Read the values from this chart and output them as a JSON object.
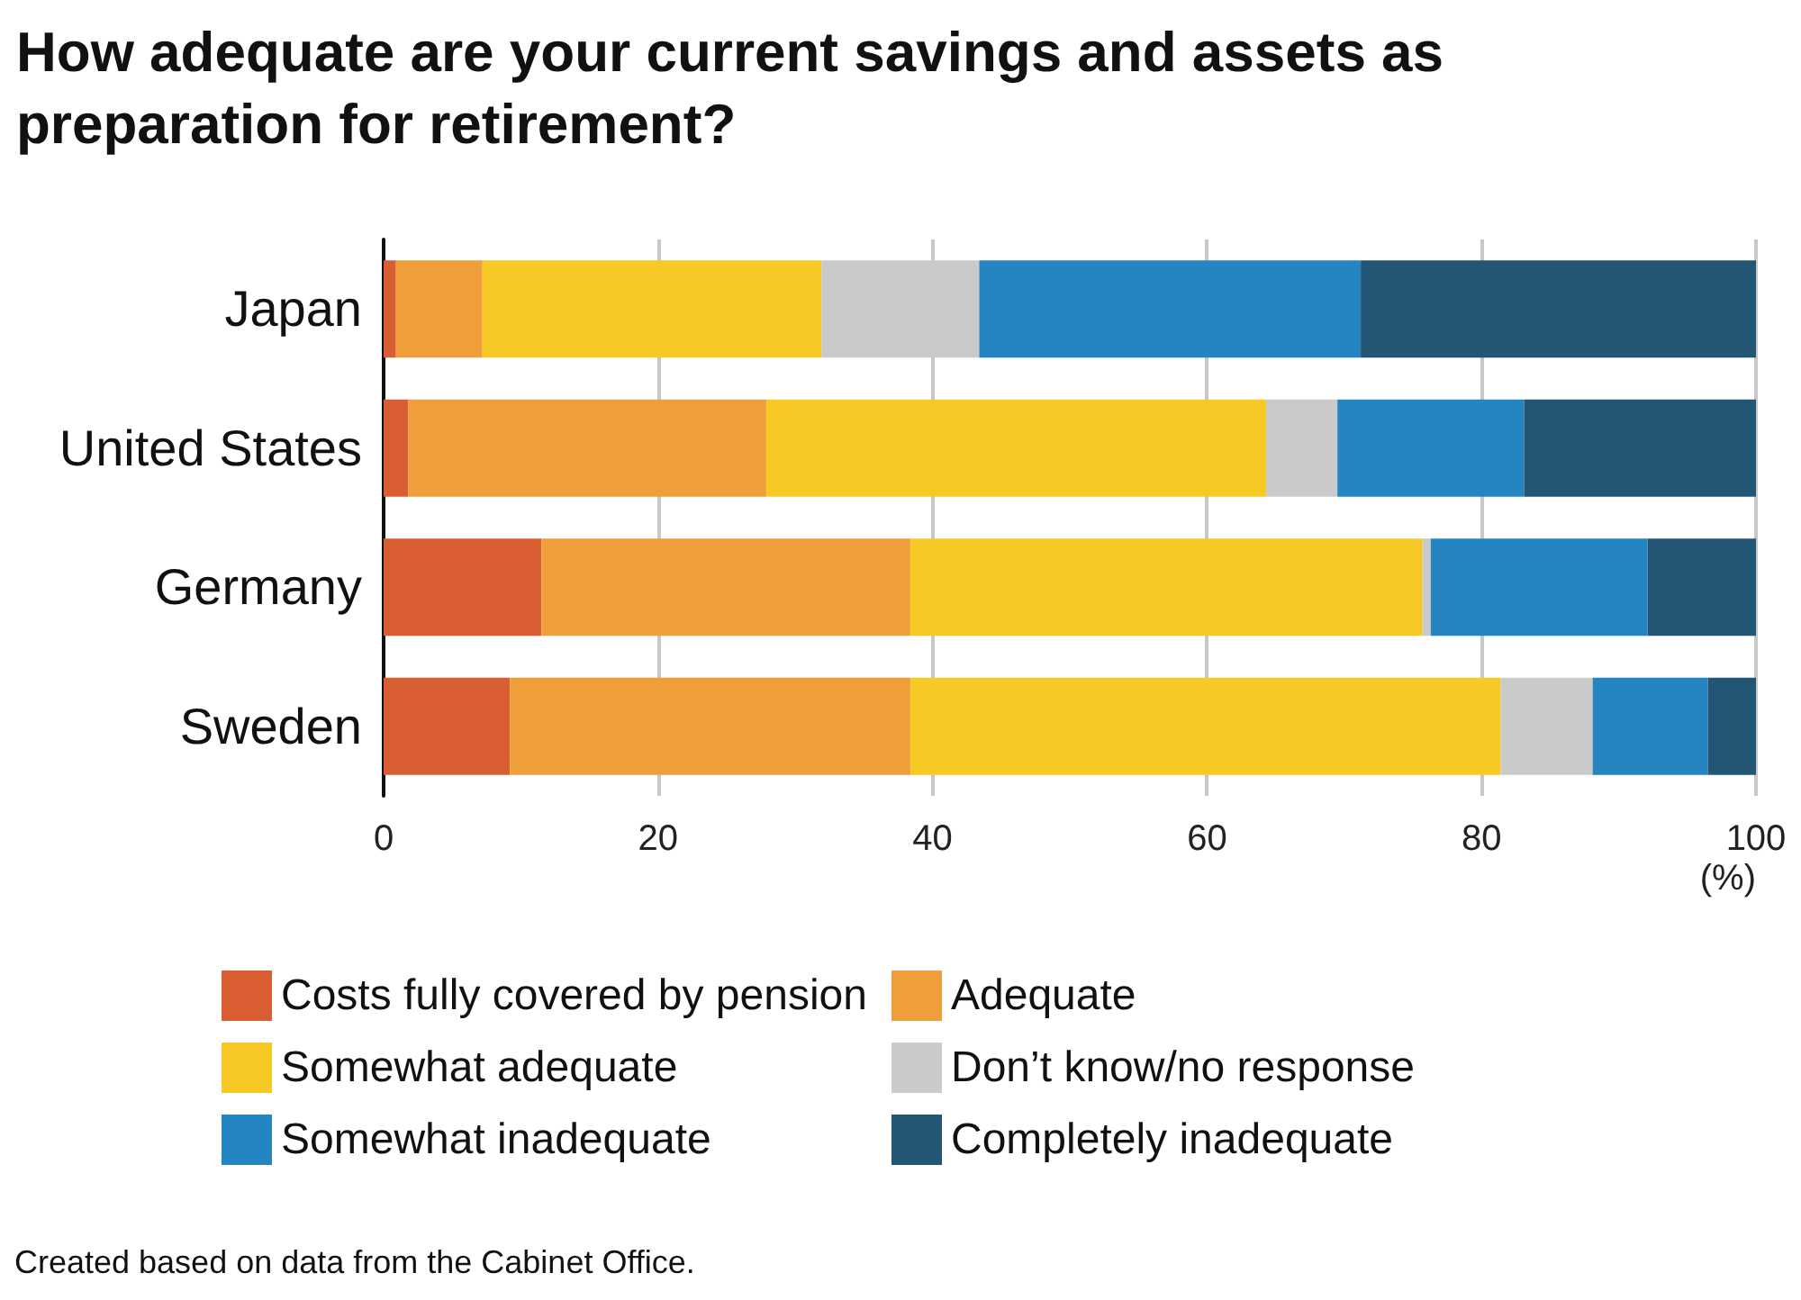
{
  "chart_data": {
    "type": "bar",
    "orientation": "horizontal",
    "stacked": true,
    "title": "How adequate are your current savings and assets as preparation for retirement?",
    "categories": [
      "Japan",
      "United States",
      "Germany",
      "Sweden"
    ],
    "series": [
      {
        "name": "Costs fully covered by pension",
        "color": "#d95f32",
        "values": [
          0.9,
          1.8,
          11.5,
          9.2
        ]
      },
      {
        "name": "Adequate",
        "color": "#f09e3a",
        "values": [
          6.3,
          26.1,
          26.9,
          29.2
        ]
      },
      {
        "name": "Somewhat adequate",
        "color": "#f7c925",
        "values": [
          24.7,
          36.4,
          37.3,
          43.0
        ]
      },
      {
        "name": "Don’t know/no response",
        "color": "#cacaca",
        "values": [
          11.5,
          5.2,
          0.6,
          6.7
        ]
      },
      {
        "name": "Somewhat inadequate",
        "color": "#2585c1",
        "values": [
          27.8,
          13.6,
          15.8,
          8.4
        ]
      },
      {
        "name": "Completely inadequate",
        "color": "#235675",
        "values": [
          28.8,
          16.9,
          7.9,
          3.5
        ]
      }
    ],
    "xlim": [
      0,
      100
    ],
    "xticks": [
      0,
      20,
      40,
      60,
      80,
      100
    ],
    "xlabel": "(%)",
    "grid": "x",
    "legend": "bottom",
    "annotations": [
      "Created based on data from the Cabinet Office."
    ]
  }
}
